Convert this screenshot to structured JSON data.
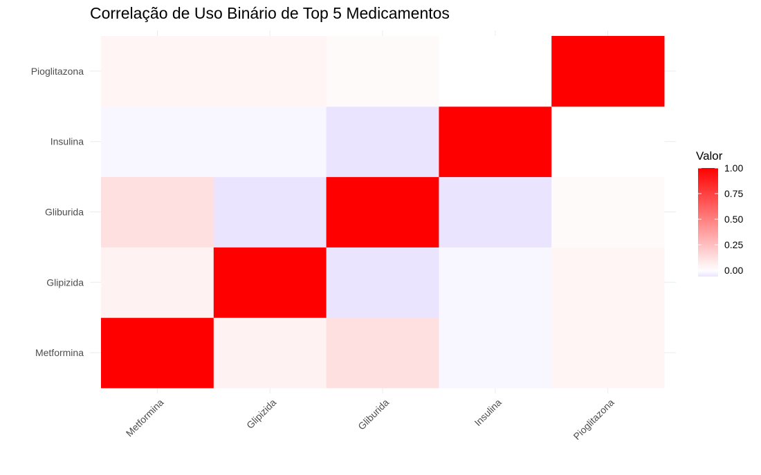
{
  "chart_data": {
    "type": "heatmap",
    "title": "Correlação de Uso Binário de Top 5 Medicamentos",
    "xlabel": "",
    "ylabel": "",
    "x_categories": [
      "Metformina",
      "Glipizida",
      "Gliburida",
      "Insulina",
      "Pioglitazona"
    ],
    "y_categories": [
      "Metformina",
      "Glipizida",
      "Gliburida",
      "Insulina",
      "Pioglitazona"
    ],
    "matrix": [
      [
        1.0,
        0.05,
        0.12,
        -0.02,
        0.04
      ],
      [
        0.05,
        1.0,
        -0.06,
        -0.02,
        0.04
      ],
      [
        0.12,
        -0.06,
        1.0,
        -0.06,
        0.02
      ],
      [
        -0.02,
        -0.02,
        -0.06,
        1.0,
        0.0
      ],
      [
        0.04,
        0.04,
        0.02,
        0.0,
        1.0
      ]
    ],
    "legend": {
      "title": "Valor",
      "position": "right",
      "ticks": [
        1.0,
        0.75,
        0.5,
        0.25,
        0.0
      ],
      "tick_labels": [
        "1.00",
        "0.75",
        "0.50",
        "0.25",
        "0.00"
      ],
      "min": -0.06,
      "max": 1.0
    },
    "colors": {
      "high": "#FF0000",
      "mid": "#FFFFFF",
      "low": "#EAE4FF",
      "grid": "#EBEBEB",
      "axis_text": "#4D4D4D"
    },
    "grid": true
  }
}
